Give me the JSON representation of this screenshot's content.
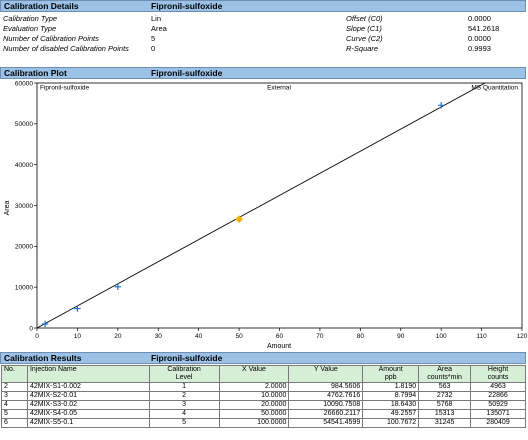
{
  "details": {
    "header": "Calibration Details",
    "compound": "Fipronil-sulfoxide",
    "left": [
      {
        "label": "Calibration Type",
        "value": "Lin"
      },
      {
        "label": "Evaluation Type",
        "value": "Area"
      },
      {
        "label": "Number of Calibration Points",
        "value": "5"
      },
      {
        "label": "Number of disabled Calibration Points",
        "value": "0"
      }
    ],
    "right": [
      {
        "label": "Offset (C0)",
        "value": "0.0000"
      },
      {
        "label": "Slope (C1)",
        "value": "541.2618"
      },
      {
        "label": "Curve (C2)",
        "value": "0.0000"
      },
      {
        "label": "R-Square",
        "value": "0.9993"
      }
    ]
  },
  "plot": {
    "header": "Calibration Plot",
    "compound": "Fipronil-sulfoxide",
    "top_left": "Fipronil-sulfoxide",
    "top_center": "External",
    "top_right": "MS Quantitation"
  },
  "chart_data": {
    "type": "scatter",
    "xlabel": "Amount",
    "ylabel": "Area",
    "xlim": [
      0,
      120
    ],
    "ylim": [
      0,
      60000
    ],
    "x_ticks": [
      0,
      10,
      20,
      30,
      40,
      50,
      60,
      70,
      80,
      90,
      100,
      110,
      120
    ],
    "y_ticks": [
      0,
      10000,
      20000,
      30000,
      40000,
      50000,
      60000
    ],
    "fit_line": {
      "intercept": 0,
      "slope": 541.2618
    },
    "points": [
      {
        "x": 2,
        "y": 984.5606,
        "marker": "plus",
        "color": "#1f6fd1"
      },
      {
        "x": 10,
        "y": 4762.7616,
        "marker": "plus",
        "color": "#1f6fd1"
      },
      {
        "x": 20,
        "y": 10090.7508,
        "marker": "plus",
        "color": "#1f6fd1"
      },
      {
        "x": 50,
        "y": 26660.2117,
        "marker": "diamond",
        "color": "#f0b400"
      },
      {
        "x": 100,
        "y": 54541.4599,
        "marker": "plus",
        "color": "#1f6fd1"
      }
    ]
  },
  "results": {
    "header": "Calibration Results",
    "compound": "Fipronil-sulfoxide",
    "columns": [
      {
        "line1": "No.",
        "line2": ""
      },
      {
        "line1": "Injection Name",
        "line2": ""
      },
      {
        "line1": "Calibration",
        "line2": "Level"
      },
      {
        "line1": "X Value",
        "line2": ""
      },
      {
        "line1": "Y Value",
        "line2": ""
      },
      {
        "line1": "Amount",
        "line2": "ppb"
      },
      {
        "line1": "Area",
        "line2": "counts*min"
      },
      {
        "line1": "Height",
        "line2": "counts"
      }
    ],
    "rows": [
      [
        "2",
        "42MIX-S1-0.002",
        "1",
        "2.0000",
        "984.5606",
        "1.8190",
        "563",
        "4963"
      ],
      [
        "3",
        "42MIX-S2-0.01",
        "2",
        "10.0000",
        "4762.7616",
        "8.7994",
        "2732",
        "22866"
      ],
      [
        "4",
        "42MIX-S3-0.02",
        "3",
        "20.0000",
        "10090.7508",
        "18.6430",
        "5768",
        "50929"
      ],
      [
        "5",
        "42MIX-S4-0.05",
        "4",
        "50.0000",
        "26660.2117",
        "49.2557",
        "15313",
        "135071"
      ],
      [
        "6",
        "42MIX-S5-0.1",
        "5",
        "100.0000",
        "54541.4599",
        "100.7672",
        "31245",
        "280409"
      ]
    ]
  }
}
